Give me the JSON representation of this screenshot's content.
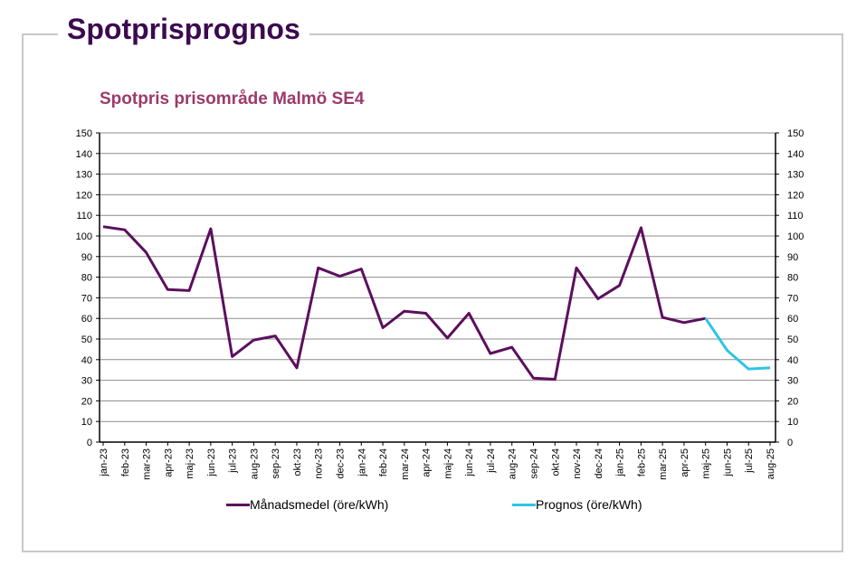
{
  "page": {
    "title": "Spotprisprognos"
  },
  "chart_data": {
    "type": "line",
    "title": "Spotpris prisområde Malmö SE4",
    "xlabel": "",
    "ylabel": "",
    "ylim": [
      0,
      150
    ],
    "yticks": [
      0,
      10,
      20,
      30,
      40,
      50,
      60,
      70,
      80,
      90,
      100,
      110,
      120,
      130,
      140,
      150
    ],
    "grid": true,
    "dual_y_axis": true,
    "legend_position": "bottom",
    "categories": [
      "jan-23",
      "feb-23",
      "mar-23",
      "apr-23",
      "maj-23",
      "jun-23",
      "jul-23",
      "aug-23",
      "sep-23",
      "okt-23",
      "nov-23",
      "dec-23",
      "jan-24",
      "feb-24",
      "mar-24",
      "apr-24",
      "maj-24",
      "jun-24",
      "jul-24",
      "aug-24",
      "sep-24",
      "okt-24",
      "nov-24",
      "dec-24",
      "jan-25",
      "feb-25",
      "mar-25",
      "apr-25",
      "maj-25",
      "jun-25",
      "jul-25",
      "aug-25"
    ],
    "series": [
      {
        "name": "Månadsmedel (öre/kWh)",
        "color": "#5c0f5e",
        "values": [
          104.5,
          103,
          92,
          74,
          73.5,
          103.5,
          41.5,
          49.5,
          51.5,
          36,
          84.5,
          80.5,
          84,
          55.5,
          63.5,
          62.5,
          50.5,
          62.5,
          43,
          46,
          31,
          30.5,
          84.5,
          69.5,
          76,
          104,
          60.5,
          58,
          60,
          null,
          null,
          null
        ]
      },
      {
        "name": "Prognos (öre/kWh)",
        "color": "#2ec4e6",
        "values": [
          null,
          null,
          null,
          null,
          null,
          null,
          null,
          null,
          null,
          null,
          null,
          null,
          null,
          null,
          null,
          null,
          null,
          null,
          null,
          null,
          null,
          null,
          null,
          null,
          null,
          null,
          null,
          null,
          60,
          44.5,
          35.5,
          36
        ]
      }
    ]
  }
}
